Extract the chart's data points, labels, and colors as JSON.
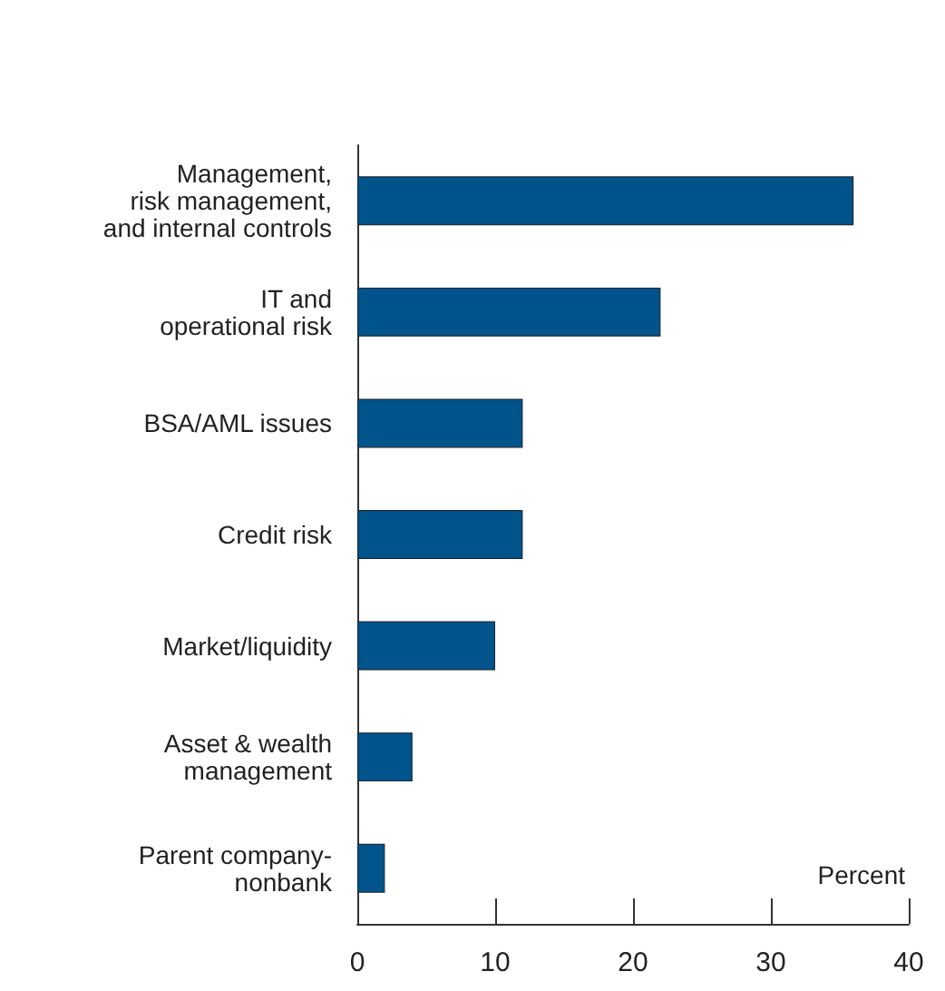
{
  "chart_data": {
    "type": "bar",
    "orientation": "horizontal",
    "categories": [
      "Management,\nrisk management,\nand internal controls",
      "IT and\noperational risk",
      "BSA/AML issues",
      "Credit risk",
      "Market/liquidity",
      "Asset & wealth\nmanagement",
      "Parent company-\nnonbank"
    ],
    "values": [
      36,
      22,
      12,
      12,
      10,
      4,
      2
    ],
    "color": "#00548c",
    "xlabel": "Percent",
    "xlim": [
      0,
      40
    ],
    "xticks": [
      0,
      10,
      20,
      30,
      40
    ],
    "grid": false
  }
}
